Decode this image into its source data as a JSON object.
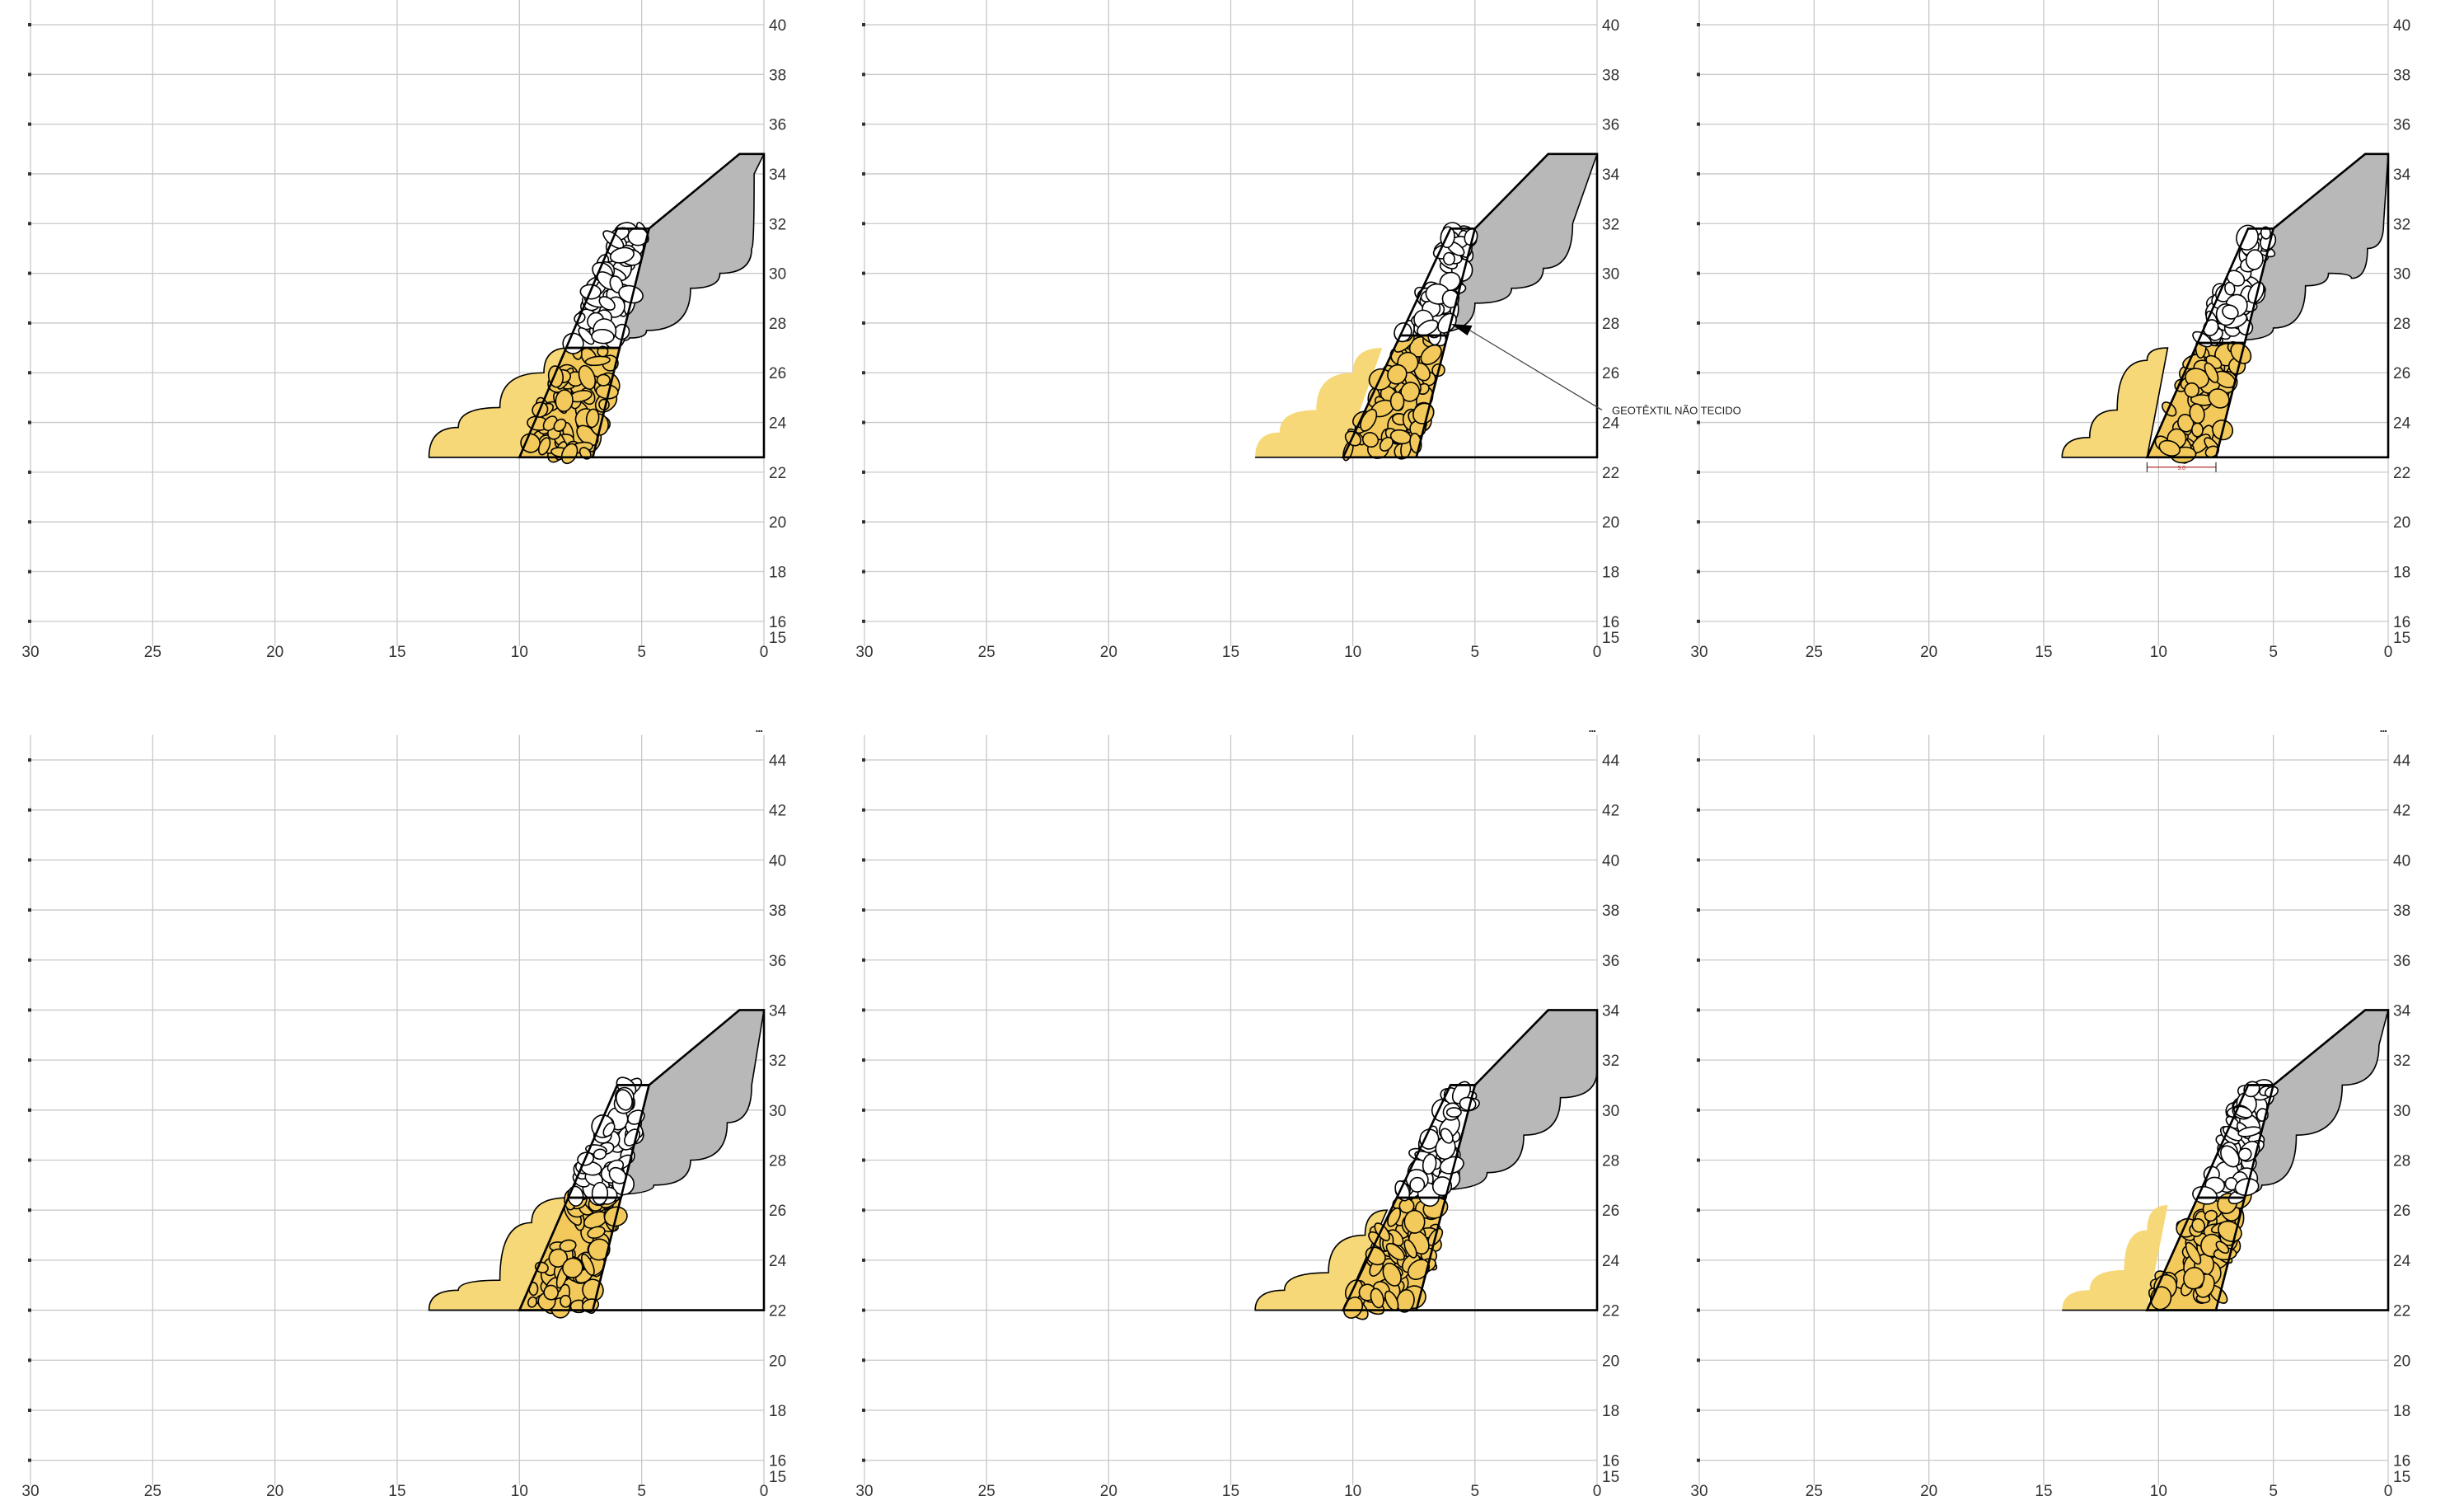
{
  "sheet": {
    "panels": [
      {
        "id": "panel-1",
        "x_ticks": [
          "30",
          "25",
          "20",
          "15",
          "10",
          "5",
          "0"
        ],
        "y_ticks": [
          "40",
          "38",
          "36",
          "34",
          "32",
          "30",
          "28",
          "26",
          "24",
          "22",
          "20",
          "18",
          "16",
          "15"
        ],
        "y_min": 15,
        "y_max": 41,
        "scale_mark": "▪▪▪",
        "section": {
          "toe_x": 13.7,
          "base_y": 22.6,
          "wall_base_outer_x": 10.0,
          "wall_base_inner_x": 7.0,
          "wall_top_outer_x": 6.0,
          "wall_top_inner_x": 4.7,
          "wall_top_y": 31.8,
          "gabion_split_y": 27.0,
          "crest_start_x": 1.0,
          "crest_y": 34.8,
          "fill_profile": [
            [
              13.7,
              22.6
            ],
            [
              12.5,
              23.8
            ],
            [
              10.8,
              24.6
            ],
            [
              9.0,
              26.0
            ],
            [
              8.0,
              27.0
            ]
          ],
          "ground_profile": [
            [
              6.9,
              27.2
            ],
            [
              5.5,
              27.4
            ],
            [
              4.8,
              27.7
            ],
            [
              3.0,
              29.4
            ],
            [
              1.8,
              30.0
            ],
            [
              0.5,
              31.0
            ],
            [
              0.4,
              34.0
            ]
          ]
        }
      },
      {
        "id": "panel-2",
        "x_ticks": [
          "30",
          "25",
          "20",
          "15",
          "10",
          "5",
          "0"
        ],
        "y_ticks": [
          "40",
          "38",
          "36",
          "34",
          "32",
          "30",
          "28",
          "26",
          "24",
          "22",
          "20",
          "18",
          "16",
          "15"
        ],
        "y_min": 15,
        "y_max": 41,
        "scale_mark": "▪▪▪",
        "callout": "GEOTÊXTIL NÃO TECIDO",
        "section": {
          "toe_x": 14.0,
          "base_y": 22.6,
          "wall_base_outer_x": 10.4,
          "wall_base_inner_x": 7.4,
          "wall_top_outer_x": 6.0,
          "wall_top_inner_x": 5.0,
          "wall_top_y": 31.8,
          "gabion_split_y": 27.5,
          "crest_start_x": 2.0,
          "crest_y": 34.8,
          "fill_profile": [
            [
              14.0,
              22.6
            ],
            [
              13.0,
              23.6
            ],
            [
              11.5,
              24.5
            ],
            [
              10.0,
              26.0
            ],
            [
              8.8,
              27.0
            ]
          ],
          "ground_profile": [
            [
              6.8,
              27.6
            ],
            [
              5.0,
              28.8
            ],
            [
              3.5,
              29.4
            ],
            [
              2.2,
              30.2
            ],
            [
              1.0,
              32.0
            ]
          ]
        }
      },
      {
        "id": "panel-3",
        "x_ticks": [
          "30",
          "25",
          "20",
          "15",
          "10",
          "5",
          "0"
        ],
        "y_ticks": [
          "40",
          "38",
          "36",
          "34",
          "32",
          "30",
          "28",
          "26",
          "24",
          "22",
          "20",
          "18",
          "16",
          "15"
        ],
        "y_min": 15,
        "y_max": 41,
        "scale_mark": "▪▪▪",
        "dimension_label": "3.0",
        "section": {
          "toe_x": 14.2,
          "base_y": 22.6,
          "wall_base_outer_x": 10.5,
          "wall_base_inner_x": 7.5,
          "wall_top_outer_x": 6.1,
          "wall_top_inner_x": 5.0,
          "wall_top_y": 31.8,
          "gabion_split_y": 27.2,
          "crest_start_x": 1.0,
          "crest_y": 34.8,
          "fill_profile": [
            [
              14.2,
              22.6
            ],
            [
              13.0,
              23.4
            ],
            [
              11.8,
              24.5
            ],
            [
              10.5,
              26.5
            ],
            [
              9.6,
              27.0
            ]
          ],
          "ground_profile": [
            [
              6.9,
              27.3
            ],
            [
              5.0,
              27.8
            ],
            [
              3.6,
              29.5
            ],
            [
              2.6,
              30.0
            ],
            [
              1.6,
              29.8
            ],
            [
              0.9,
              31.0
            ],
            [
              0.2,
              32.0
            ]
          ]
        }
      },
      {
        "id": "panel-4",
        "x_ticks": [
          "30",
          "25",
          "20",
          "15",
          "10",
          "5",
          "0"
        ],
        "y_ticks": [
          "44",
          "42",
          "40",
          "38",
          "36",
          "34",
          "32",
          "30",
          "28",
          "26",
          "24",
          "22",
          "20",
          "18",
          "16",
          "15"
        ],
        "y_min": 15,
        "y_max": 45,
        "scale_mark": "▪▪▪",
        "section": {
          "toe_x": 13.7,
          "base_y": 22.0,
          "wall_base_outer_x": 10.0,
          "wall_base_inner_x": 7.0,
          "wall_top_outer_x": 6.0,
          "wall_top_inner_x": 4.7,
          "wall_top_y": 31.0,
          "gabion_split_y": 26.5,
          "crest_start_x": 1.0,
          "crest_y": 34.0,
          "fill_profile": [
            [
              13.7,
              22.0
            ],
            [
              12.5,
              22.8
            ],
            [
              10.8,
              23.2
            ],
            [
              9.5,
              25.5
            ],
            [
              8.0,
              26.5
            ]
          ],
          "ground_profile": [
            [
              6.9,
              26.6
            ],
            [
              4.5,
              27.0
            ],
            [
              3.0,
              28.0
            ],
            [
              1.5,
              29.5
            ],
            [
              0.5,
              31.0
            ]
          ]
        }
      },
      {
        "id": "panel-5",
        "x_ticks": [
          "30",
          "25",
          "20",
          "15",
          "10",
          "5",
          "0"
        ],
        "y_ticks": [
          "44",
          "42",
          "40",
          "38",
          "36",
          "34",
          "32",
          "30",
          "28",
          "26",
          "24",
          "22",
          "20",
          "18",
          "16",
          "15"
        ],
        "y_min": 15,
        "y_max": 45,
        "scale_mark": "▪▪▪",
        "section": {
          "toe_x": 14.0,
          "base_y": 22.0,
          "wall_base_outer_x": 10.4,
          "wall_base_inner_x": 7.4,
          "wall_top_outer_x": 6.0,
          "wall_top_inner_x": 5.0,
          "wall_top_y": 31.0,
          "gabion_split_y": 26.5,
          "crest_start_x": 2.0,
          "crest_y": 34.0,
          "fill_profile": [
            [
              14.0,
              22.0
            ],
            [
              12.8,
              22.8
            ],
            [
              11.0,
              23.5
            ],
            [
              9.5,
              25.0
            ],
            [
              8.6,
              26.0
            ]
          ],
          "ground_profile": [
            [
              6.8,
              26.8
            ],
            [
              4.5,
              27.5
            ],
            [
              3.0,
              29.0
            ],
            [
              1.5,
              30.5
            ],
            [
              0.0,
              31.6
            ]
          ]
        }
      },
      {
        "id": "panel-6",
        "x_ticks": [
          "30",
          "25",
          "20",
          "15",
          "10",
          "5",
          "0"
        ],
        "y_ticks": [
          "44",
          "42",
          "40",
          "38",
          "36",
          "34",
          "32",
          "30",
          "28",
          "26",
          "24",
          "22",
          "20",
          "18",
          "16",
          "15"
        ],
        "y_min": 15,
        "y_max": 45,
        "scale_mark": "▪▪▪",
        "section": {
          "toe_x": 14.2,
          "base_y": 22.0,
          "wall_base_outer_x": 10.5,
          "wall_base_inner_x": 7.5,
          "wall_top_outer_x": 6.1,
          "wall_top_inner_x": 5.0,
          "wall_top_y": 31.0,
          "gabion_split_y": 26.5,
          "crest_start_x": 1.0,
          "crest_y": 34.0,
          "fill_profile": [
            [
              14.2,
              22.0
            ],
            [
              13.0,
              22.8
            ],
            [
              11.5,
              23.6
            ],
            [
              10.5,
              25.2
            ],
            [
              9.6,
              26.2
            ]
          ],
          "ground_profile": [
            [
              6.9,
              26.6
            ],
            [
              5.5,
              27.0
            ],
            [
              4.0,
              29.0
            ],
            [
              2.0,
              31.0
            ],
            [
              0.4,
              32.6
            ]
          ]
        }
      }
    ],
    "colors": {
      "fill_sand": "#f6d878",
      "gabion_lower": "#f2c95a",
      "gabion_upper": "#ffffff",
      "backfill": "#b8b8b8",
      "grid": "#c8c8c8",
      "dimension": "#b03030"
    },
    "icons": {
      "callout_arrow": "arrowhead-icon"
    }
  }
}
